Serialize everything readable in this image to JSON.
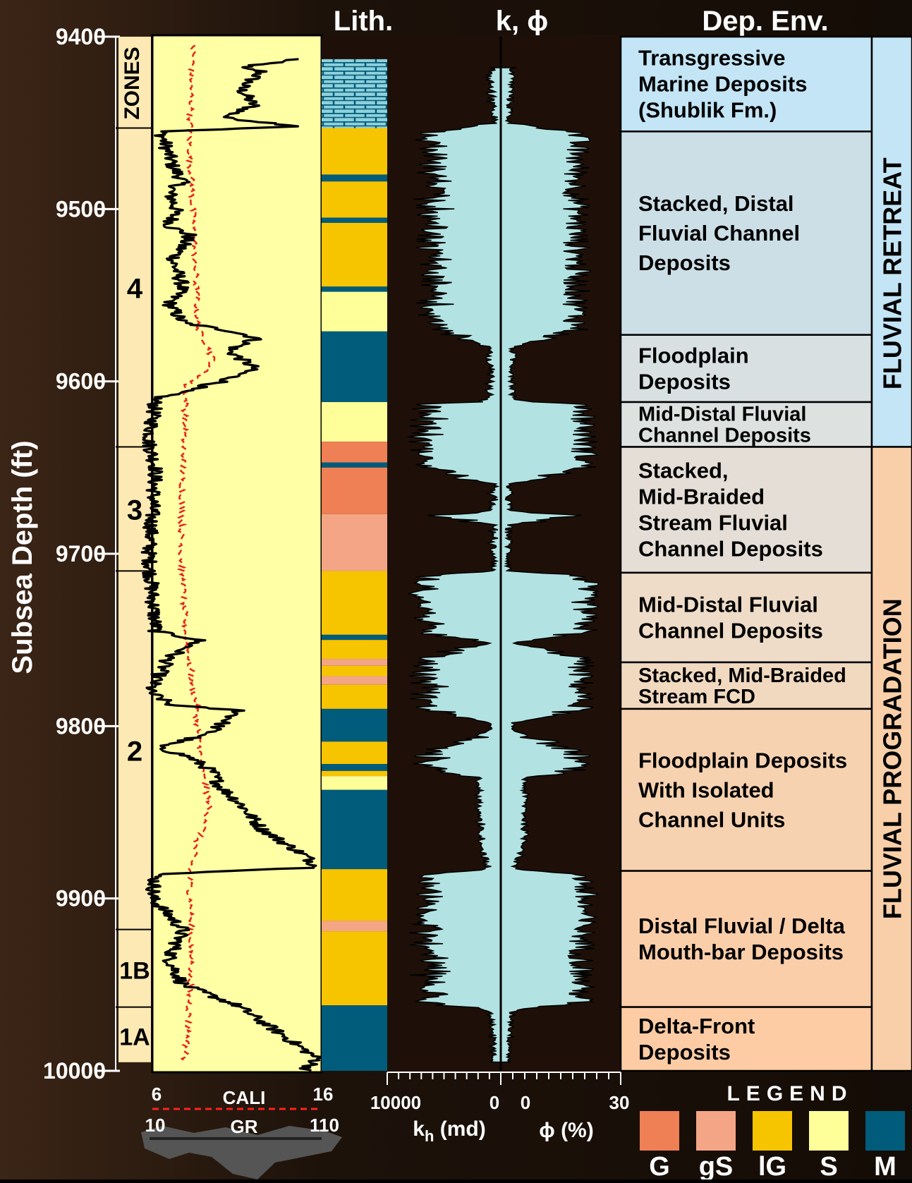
{
  "headers": {
    "lith": "Lith.",
    "k_phi": "k, ϕ",
    "dep_env": "Dep. Env."
  },
  "depth_axis": {
    "label": "Subsea Depth (ft)",
    "min": 9400,
    "max": 10000,
    "ticks": [
      "9400",
      "9500",
      "9600",
      "9700",
      "9800",
      "9900",
      "10000"
    ]
  },
  "zones": {
    "title": "ZONES",
    "items": [
      {
        "label": "4",
        "top": 9453,
        "base": 9638
      },
      {
        "label": "3",
        "top": 9638,
        "base": 9710
      },
      {
        "label": "2",
        "top": 9710,
        "base": 9918
      },
      {
        "label": "1B",
        "top": 9918,
        "base": 9963
      },
      {
        "label": "1A",
        "top": 9963,
        "base": 9995
      }
    ]
  },
  "log_scales": {
    "cali": {
      "label": "CALI",
      "min": "6",
      "max": "16"
    },
    "gr": {
      "label": "GR",
      "min": "10",
      "max": "110"
    },
    "kh": {
      "label": "k",
      "sub": "h",
      "unit": " (md)",
      "left": "10000",
      "right": "0"
    },
    "phi": {
      "label": "ϕ (%)",
      "left": "0",
      "right": "30"
    }
  },
  "lithology": {
    "colors": {
      "G": "#ef7f55",
      "gS": "#f4a585",
      "lG": "#f7c400",
      "S": "#ffff99",
      "M": "#005c7a",
      "limestone": "#8fd0db"
    },
    "intervals": [
      {
        "top": 9413,
        "base": 9453,
        "type": "limestone"
      },
      {
        "top": 9453,
        "base": 9480,
        "type": "lG"
      },
      {
        "top": 9480,
        "base": 9484,
        "type": "M"
      },
      {
        "top": 9484,
        "base": 9505,
        "type": "lG"
      },
      {
        "top": 9505,
        "base": 9508,
        "type": "M"
      },
      {
        "top": 9508,
        "base": 9545,
        "type": "lG"
      },
      {
        "top": 9545,
        "base": 9548,
        "type": "M"
      },
      {
        "top": 9548,
        "base": 9571,
        "type": "S"
      },
      {
        "top": 9571,
        "base": 9612,
        "type": "M"
      },
      {
        "top": 9612,
        "base": 9635,
        "type": "S"
      },
      {
        "top": 9635,
        "base": 9647,
        "type": "G"
      },
      {
        "top": 9647,
        "base": 9650,
        "type": "M"
      },
      {
        "top": 9650,
        "base": 9677,
        "type": "G"
      },
      {
        "top": 9677,
        "base": 9710,
        "type": "gS"
      },
      {
        "top": 9710,
        "base": 9747,
        "type": "lG"
      },
      {
        "top": 9747,
        "base": 9750,
        "type": "M"
      },
      {
        "top": 9750,
        "base": 9761,
        "type": "lG"
      },
      {
        "top": 9761,
        "base": 9765,
        "type": "gS"
      },
      {
        "top": 9765,
        "base": 9771,
        "type": "lG"
      },
      {
        "top": 9771,
        "base": 9776,
        "type": "gS"
      },
      {
        "top": 9776,
        "base": 9790,
        "type": "lG"
      },
      {
        "top": 9790,
        "base": 9809,
        "type": "M"
      },
      {
        "top": 9809,
        "base": 9822,
        "type": "lG"
      },
      {
        "top": 9822,
        "base": 9826,
        "type": "M"
      },
      {
        "top": 9826,
        "base": 9829,
        "type": "lG"
      },
      {
        "top": 9829,
        "base": 9837,
        "type": "S"
      },
      {
        "top": 9837,
        "base": 9883,
        "type": "M"
      },
      {
        "top": 9883,
        "base": 9913,
        "type": "lG"
      },
      {
        "top": 9913,
        "base": 9919,
        "type": "gS"
      },
      {
        "top": 9919,
        "base": 9962,
        "type": "lG"
      },
      {
        "top": 9962,
        "base": 10000,
        "type": "M"
      }
    ]
  },
  "dep_env": [
    {
      "top": 9400,
      "base": 9455,
      "lines": [
        "Transgressive",
        "Marine Deposits",
        "(Shublik Fm.)"
      ],
      "color": "#c3e5f6"
    },
    {
      "top": 9455,
      "base": 9573,
      "lines": [
        "Stacked, Distal",
        "Fluvial Channel",
        "Deposits"
      ],
      "color": "#ccdee6"
    },
    {
      "top": 9573,
      "base": 9612,
      "lines": [
        "Floodplain",
        "Deposits"
      ],
      "color": "#d8e0e2"
    },
    {
      "top": 9612,
      "base": 9638,
      "lines": [
        "Mid-Distal Fluvial",
        "Channel Deposits"
      ],
      "color": "#dde2e1"
    },
    {
      "top": 9638,
      "base": 9711,
      "lines": [
        "Stacked,",
        "Mid-Braided",
        "Stream Fluvial",
        "Channel Deposits"
      ],
      "color": "#e5ded6"
    },
    {
      "top": 9711,
      "base": 9763,
      "lines": [
        "Mid-Distal Fluvial",
        "Channel Deposits"
      ],
      "color": "#eedcc8"
    },
    {
      "top": 9763,
      "base": 9790,
      "lines": [
        "Stacked, Mid-Braided",
        "Stream FCD"
      ],
      "color": "#f1d9c0"
    },
    {
      "top": 9790,
      "base": 9884,
      "lines": [
        "Floodplain Deposits",
        "With Isolated",
        "Channel Units"
      ],
      "color": "#f7d2b0"
    },
    {
      "top": 9884,
      "base": 9963,
      "lines": [
        "Distal Fluvial / Delta",
        "Mouth-bar Deposits"
      ],
      "color": "#fbceaa"
    },
    {
      "top": 9963,
      "base": 10000,
      "lines": [
        "Delta-Front",
        "Deposits"
      ],
      "color": "#fdcca4"
    }
  ],
  "sequences": [
    {
      "label": "FLUVIAL RETREAT",
      "top": 9400,
      "base": 9638
    },
    {
      "label": "FLUVIAL PROGRADATION",
      "top": 9638,
      "base": 10000
    }
  ],
  "legend": {
    "title": "LEGEND",
    "items": [
      {
        "code": "G",
        "color": "#ef7f55"
      },
      {
        "code": "gS",
        "color": "#f4a585"
      },
      {
        "code": "lG",
        "color": "#f7c400"
      },
      {
        "code": "S",
        "color": "#ffff99"
      },
      {
        "code": "M",
        "color": "#005c7a"
      }
    ]
  },
  "log_data": {
    "gr_breakpoints": [
      [
        9413,
        95
      ],
      [
        9418,
        60
      ],
      [
        9420,
        75
      ],
      [
        9430,
        62
      ],
      [
        9440,
        70
      ],
      [
        9447,
        52
      ],
      [
        9452,
        98
      ],
      [
        9455,
        15
      ],
      [
        9475,
        22
      ],
      [
        9484,
        28
      ],
      [
        9490,
        20
      ],
      [
        9500,
        24
      ],
      [
        9510,
        20
      ],
      [
        9515,
        32
      ],
      [
        9530,
        22
      ],
      [
        9545,
        28
      ],
      [
        9555,
        20
      ],
      [
        9566,
        28
      ],
      [
        9571,
        58
      ],
      [
        9575,
        72
      ],
      [
        9582,
        55
      ],
      [
        9592,
        70
      ],
      [
        9600,
        52
      ],
      [
        9605,
        30
      ],
      [
        9610,
        12
      ],
      [
        9635,
        8
      ],
      [
        9650,
        12
      ],
      [
        9700,
        8
      ],
      [
        9725,
        10
      ],
      [
        9745,
        12
      ],
      [
        9750,
        38
      ],
      [
        9760,
        20
      ],
      [
        9780,
        8
      ],
      [
        9788,
        22
      ],
      [
        9791,
        62
      ],
      [
        9796,
        55
      ],
      [
        9805,
        42
      ],
      [
        9812,
        12
      ],
      [
        9818,
        32
      ],
      [
        9826,
        45
      ],
      [
        9835,
        50
      ],
      [
        9845,
        62
      ],
      [
        9860,
        75
      ],
      [
        9875,
        100
      ],
      [
        9882,
        108
      ],
      [
        9886,
        12
      ],
      [
        9900,
        10
      ],
      [
        9918,
        28
      ],
      [
        9935,
        20
      ],
      [
        9950,
        28
      ],
      [
        9962,
        60
      ],
      [
        9978,
        85
      ],
      [
        9988,
        100
      ],
      [
        9993,
        108
      ],
      [
        10000,
        100
      ]
    ],
    "cali_breakpoints": [
      [
        9405,
        8.4
      ],
      [
        9460,
        8.2
      ],
      [
        9570,
        8.7
      ],
      [
        9578,
        9.2
      ],
      [
        9588,
        9.6
      ],
      [
        9596,
        9.0
      ],
      [
        9602,
        8.0
      ],
      [
        9650,
        7.8
      ],
      [
        9700,
        7.7
      ],
      [
        9750,
        8.0
      ],
      [
        9790,
        8.6
      ],
      [
        9815,
        8.8
      ],
      [
        9830,
        9.0
      ],
      [
        9845,
        9.4
      ],
      [
        9855,
        9.2
      ],
      [
        9868,
        8.6
      ],
      [
        9885,
        8.2
      ],
      [
        9940,
        8.3
      ],
      [
        9975,
        8.1
      ],
      [
        9995,
        7.9
      ]
    ],
    "phi_breakpoints": [
      [
        9418,
        3
      ],
      [
        9450,
        2
      ],
      [
        9455,
        19
      ],
      [
        9570,
        19
      ],
      [
        9580,
        3
      ],
      [
        9611,
        3
      ],
      [
        9613,
        21
      ],
      [
        9650,
        21
      ],
      [
        9660,
        2
      ],
      [
        9675,
        2
      ],
      [
        9678,
        19
      ],
      [
        9683,
        2
      ],
      [
        9710,
        2
      ],
      [
        9713,
        21
      ],
      [
        9745,
        21
      ],
      [
        9752,
        3
      ],
      [
        9760,
        20
      ],
      [
        9790,
        20
      ],
      [
        9798,
        3
      ],
      [
        9802,
        3
      ],
      [
        9816,
        19
      ],
      [
        9825,
        19
      ],
      [
        9830,
        6
      ],
      [
        9870,
        6
      ],
      [
        9883,
        3
      ],
      [
        9886,
        21
      ],
      [
        9960,
        20
      ],
      [
        9965,
        3
      ],
      [
        9995,
        2
      ]
    ]
  }
}
